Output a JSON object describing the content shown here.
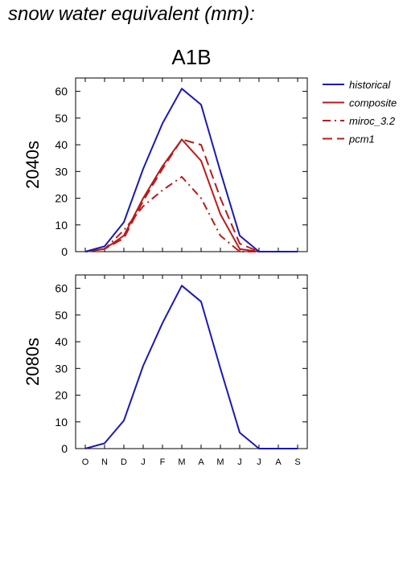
{
  "page_title": "snow water equivalent (mm):",
  "scenario_title": "A1B",
  "colors": {
    "historical": "#1a1ab4",
    "future": "#bb1a1a"
  },
  "chart_data": [
    {
      "type": "line",
      "panel_label": "2040s",
      "categories": [
        "O",
        "N",
        "D",
        "J",
        "F",
        "M",
        "A",
        "M",
        "J",
        "J",
        "A",
        "S"
      ],
      "ylim": [
        0,
        65
      ],
      "yticks": [
        0,
        10,
        20,
        30,
        40,
        50,
        60
      ],
      "legend_position": "right",
      "series": [
        {
          "name": "historical",
          "color": "#1a1ab4",
          "dash": "solid",
          "values": [
            0,
            2,
            11,
            31,
            48,
            61,
            55,
            30,
            6,
            0,
            0,
            0
          ]
        },
        {
          "name": "composite",
          "color": "#bb1a1a",
          "dash": "solid",
          "values": [
            0,
            1,
            6,
            20,
            32,
            42,
            34,
            14,
            1,
            0,
            0,
            0
          ]
        },
        {
          "name": "miroc_3.2",
          "color": "#bb1a1a",
          "dash": "dashdot",
          "values": [
            0,
            1,
            8,
            17,
            23,
            28,
            20,
            6,
            0,
            0,
            0,
            0
          ]
        },
        {
          "name": "pcm1",
          "color": "#bb1a1a",
          "dash": "dash",
          "values": [
            0,
            1,
            5,
            19,
            31,
            42,
            40,
            20,
            3,
            0,
            0,
            0
          ]
        }
      ]
    },
    {
      "type": "line",
      "panel_label": "2080s",
      "categories": [
        "O",
        "N",
        "D",
        "J",
        "F",
        "M",
        "A",
        "M",
        "J",
        "J",
        "A",
        "S"
      ],
      "ylim": [
        0,
        65
      ],
      "yticks": [
        0,
        10,
        20,
        30,
        40,
        50,
        60
      ],
      "series": [
        {
          "name": "historical",
          "color": "#1a1ab4",
          "dash": "solid",
          "values": [
            0,
            2,
            10.5,
            31,
            47,
            61,
            55,
            30,
            6,
            0,
            0,
            0
          ]
        }
      ]
    }
  ]
}
